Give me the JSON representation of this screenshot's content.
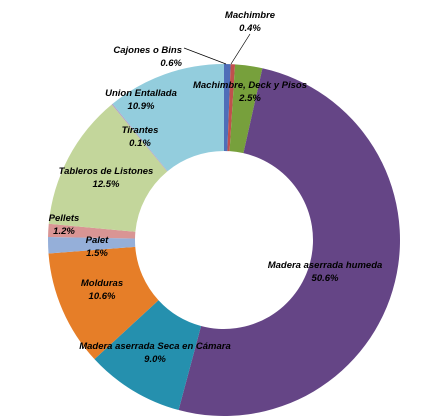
{
  "chart_data": {
    "type": "pie",
    "variant": "donut",
    "start": "top, clockwise",
    "slices": [
      {
        "label": "Cajones o Bins",
        "value_text": "0.6%",
        "value": 0.6,
        "color": "#4f6eb8"
      },
      {
        "label": "Machimbre",
        "value_text": "0.4%",
        "value": 0.4,
        "color": "#c0504d"
      },
      {
        "label": "Machimbre, Deck y Pisos",
        "value_text": "2.5%",
        "value": 2.5,
        "color": "#77a03c"
      },
      {
        "label": "Madera aserrada humeda",
        "value_text": "50.6%",
        "value": 50.6,
        "color": "#654586"
      },
      {
        "label": "Madera aserrada Seca en Cámara",
        "value_text": "9.0%",
        "value": 9.0,
        "color": "#2590ae"
      },
      {
        "label": "Molduras",
        "value_text": "10.6%",
        "value": 10.6,
        "color": "#e67e28"
      },
      {
        "label": "Palet",
        "value_text": "1.5%",
        "value": 1.5,
        "color": "#95afd9"
      },
      {
        "label": "Pellets",
        "value_text": "1.2%",
        "value": 1.2,
        "color": "#d99594"
      },
      {
        "label": "Tableros de Listones",
        "value_text": "12.5%",
        "value": 12.5,
        "color": "#c3d69b"
      },
      {
        "label": "Tirantes",
        "value_text": "0.1%",
        "value": 0.1,
        "color": "#b2a1c7"
      },
      {
        "label": "Union Entallada",
        "value_text": "10.9%",
        "value": 10.9,
        "color": "#93cddd"
      }
    ]
  }
}
